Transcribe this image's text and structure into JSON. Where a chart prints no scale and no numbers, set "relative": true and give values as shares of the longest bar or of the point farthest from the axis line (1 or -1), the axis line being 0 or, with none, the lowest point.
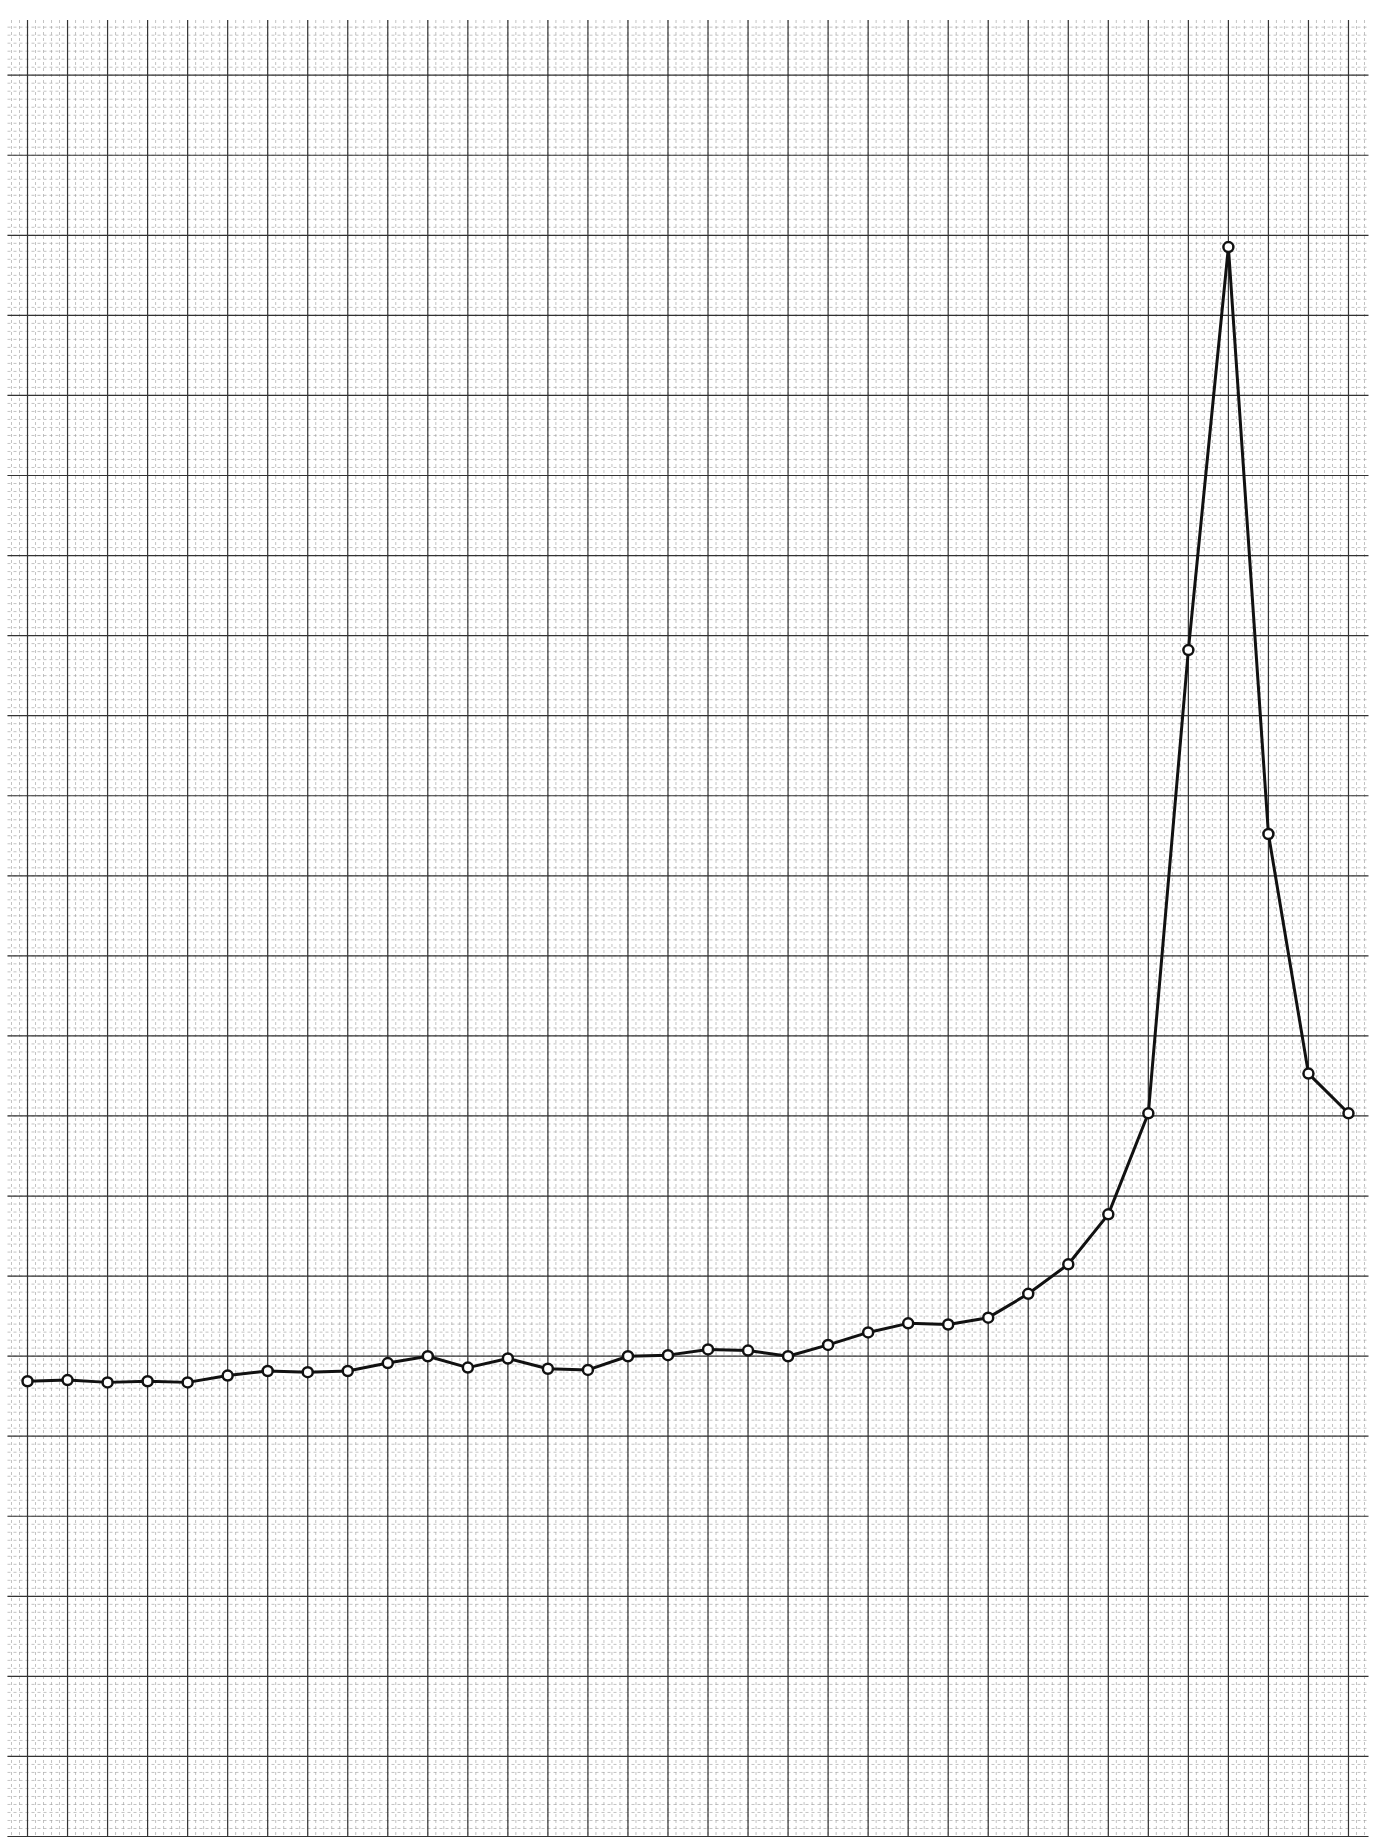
{
  "chart_data": {
    "type": "line",
    "relative": true,
    "categories": [
      null,
      null,
      null,
      null,
      null,
      null,
      null,
      null,
      null,
      null,
      null,
      null,
      null,
      null,
      null,
      null,
      null,
      null,
      null,
      null,
      null,
      null,
      null,
      null,
      null,
      null,
      null,
      null,
      null,
      null,
      null,
      null,
      null,
      null
    ],
    "series": [
      {
        "color": "#111111",
        "values": [
          0.001,
          0.002,
          0,
          0.001,
          0,
          0.006,
          0.01,
          0.009,
          0.01,
          0.017,
          0.023,
          0.013,
          0.021,
          0.012,
          0.011,
          0.023,
          0.024,
          0.029,
          0.028,
          0.023,
          0.033,
          0.044,
          0.052,
          0.051,
          0.057,
          0.078,
          0.104,
          0.148,
          0.237,
          0.645,
          1,
          0.483,
          0.272,
          0.237
        ]
      }
    ],
    "grid": true,
    "legend": false,
    "marker": "circle",
    "line_style": "solid",
    "tick_labels": false
  }
}
